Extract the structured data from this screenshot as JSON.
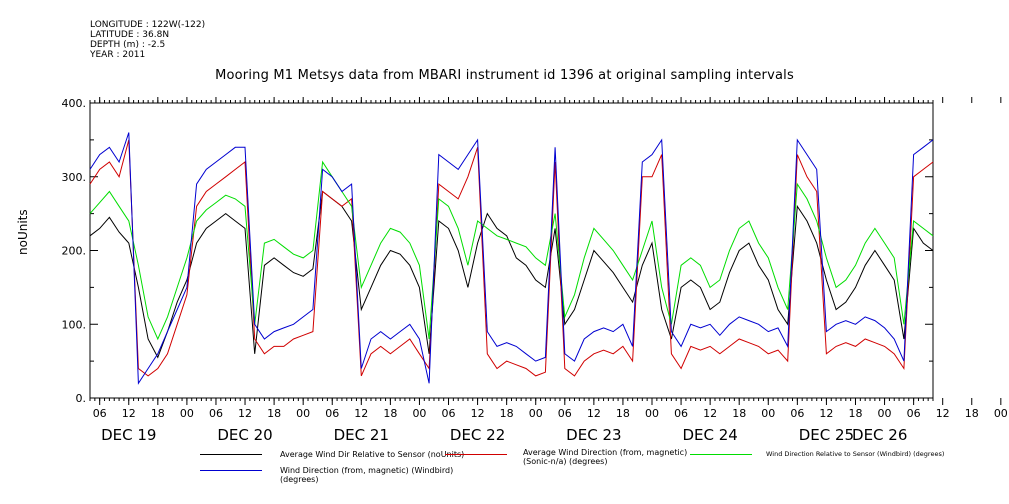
{
  "header": {
    "longitude": "LONGITUDE : 122W(-122)",
    "latitude": "LATITUDE : 36.8N",
    "depth": "DEPTH (m) : -2.5",
    "year": "YEAR : 2011"
  },
  "chart_data": {
    "type": "line",
    "title": "Mooring M1 Metsys data from MBARI instrument id 1396 at original sampling intervals",
    "ylabel": "noUnits",
    "xlabel": "",
    "ylim": [
      0,
      400
    ],
    "y_ticks": [
      0,
      100,
      200,
      300,
      400
    ],
    "y_tick_labels": [
      "0.",
      "100.",
      "200.",
      "300.",
      "400."
    ],
    "xlim_hours": [
      0,
      174
    ],
    "x_tick_labels": [
      "06",
      "12",
      "18",
      "00",
      "06",
      "12",
      "18",
      "00",
      "06",
      "12",
      "18",
      "00",
      "06",
      "12",
      "18",
      "00",
      "06",
      "12",
      "18",
      "00",
      "06",
      "12",
      "18",
      "00",
      "06",
      "12",
      "18",
      "00",
      "06",
      "12",
      "18",
      "00",
      "06",
      "12",
      "18",
      "00"
    ],
    "date_labels": [
      "DEC 19",
      "DEC 20",
      "DEC 21",
      "DEC 22",
      "DEC 23",
      "DEC 24",
      "DEC 25",
      "DEC 26"
    ],
    "grid": false,
    "legend_position": "bottom",
    "series": [
      {
        "name": "Average Wind Dir Relative to Sensor (noUnits)",
        "color": "#000000",
        "x": [
          0,
          2,
          4,
          6,
          8,
          10,
          12,
          14,
          16,
          18,
          20,
          22,
          24,
          26,
          28,
          30,
          32,
          34,
          36,
          38,
          40,
          42,
          44,
          46,
          48,
          50,
          52,
          54,
          56,
          58,
          60,
          62,
          64,
          66,
          68,
          70,
          72,
          74,
          76,
          78,
          80,
          82,
          84,
          86,
          88,
          90,
          92,
          94,
          96,
          98,
          100,
          102,
          104,
          106,
          108,
          110,
          112,
          114,
          116,
          118,
          120,
          122,
          124,
          126,
          128,
          130,
          132,
          134,
          136,
          138,
          140,
          142,
          144,
          146,
          148,
          150,
          152,
          154,
          156,
          158,
          160,
          162,
          164,
          166,
          168,
          170,
          172,
          174
        ],
        "values": [
          220,
          230,
          245,
          225,
          210,
          150,
          80,
          55,
          90,
          130,
          160,
          210,
          230,
          240,
          250,
          240,
          230,
          60,
          180,
          190,
          180,
          170,
          165,
          175,
          280,
          270,
          260,
          240,
          120,
          150,
          180,
          200,
          195,
          180,
          150,
          60,
          240,
          230,
          200,
          150,
          210,
          250,
          230,
          220,
          190,
          180,
          160,
          150,
          230,
          100,
          120,
          160,
          200,
          185,
          170,
          150,
          130,
          180,
          210,
          120,
          80,
          150,
          160,
          150,
          120,
          130,
          170,
          200,
          210,
          180,
          160,
          120,
          100,
          260,
          240,
          210,
          160,
          120,
          130,
          150,
          180,
          200,
          180,
          160,
          80,
          230,
          210,
          200
        ]
      },
      {
        "name": "Average Wind Direction (from, magnetic) (Sonic-n/a) (degrees)",
        "color": "#d00000",
        "x": [
          0,
          2,
          4,
          6,
          8,
          10,
          12,
          14,
          16,
          18,
          20,
          22,
          24,
          26,
          28,
          30,
          32,
          34,
          36,
          38,
          40,
          42,
          44,
          46,
          48,
          50,
          52,
          54,
          56,
          58,
          60,
          62,
          64,
          66,
          68,
          70,
          72,
          74,
          76,
          78,
          80,
          82,
          84,
          86,
          88,
          90,
          92,
          94,
          96,
          98,
          100,
          102,
          104,
          106,
          108,
          110,
          112,
          114,
          116,
          118,
          120,
          122,
          124,
          126,
          128,
          130,
          132,
          134,
          136,
          138,
          140,
          142,
          144,
          146,
          148,
          150,
          152,
          154,
          156,
          158,
          160,
          162,
          164,
          166,
          168,
          170,
          172,
          174
        ],
        "values": [
          290,
          310,
          320,
          300,
          350,
          40,
          30,
          40,
          60,
          100,
          140,
          260,
          280,
          290,
          300,
          310,
          320,
          80,
          60,
          70,
          70,
          80,
          85,
          90,
          280,
          270,
          260,
          270,
          30,
          60,
          70,
          60,
          70,
          80,
          60,
          40,
          290,
          280,
          270,
          300,
          340,
          60,
          40,
          50,
          45,
          40,
          30,
          35,
          320,
          40,
          30,
          50,
          60,
          65,
          60,
          70,
          50,
          300,
          300,
          330,
          60,
          40,
          70,
          65,
          70,
          60,
          70,
          80,
          75,
          70,
          60,
          65,
          50,
          330,
          300,
          280,
          60,
          70,
          75,
          70,
          80,
          75,
          70,
          60,
          40,
          300,
          310,
          320
        ]
      },
      {
        "name": "Wind Direction Relative to Sensor (Windbird) (degrees)",
        "color": "#00dd00",
        "x": [
          0,
          2,
          4,
          6,
          8,
          10,
          12,
          14,
          16,
          18,
          20,
          22,
          24,
          26,
          28,
          30,
          32,
          34,
          36,
          38,
          40,
          42,
          44,
          46,
          48,
          50,
          52,
          54,
          56,
          58,
          60,
          62,
          64,
          66,
          68,
          70,
          72,
          74,
          76,
          78,
          80,
          82,
          84,
          86,
          88,
          90,
          92,
          94,
          96,
          98,
          100,
          102,
          104,
          106,
          108,
          110,
          112,
          114,
          116,
          118,
          120,
          122,
          124,
          126,
          128,
          130,
          132,
          134,
          136,
          138,
          140,
          142,
          144,
          146,
          148,
          150,
          152,
          154,
          156,
          158,
          160,
          162,
          164,
          166,
          168,
          170,
          172,
          174
        ],
        "values": [
          250,
          265,
          280,
          260,
          240,
          180,
          110,
          80,
          110,
          150,
          190,
          240,
          255,
          265,
          275,
          270,
          260,
          100,
          210,
          215,
          205,
          195,
          190,
          200,
          320,
          300,
          280,
          260,
          150,
          180,
          210,
          230,
          225,
          210,
          180,
          80,
          270,
          260,
          230,
          180,
          240,
          230,
          220,
          215,
          210,
          205,
          190,
          180,
          250,
          110,
          140,
          190,
          230,
          215,
          200,
          180,
          160,
          200,
          240,
          150,
          100,
          180,
          190,
          180,
          150,
          160,
          200,
          230,
          240,
          210,
          190,
          150,
          120,
          290,
          270,
          240,
          190,
          150,
          160,
          180,
          210,
          230,
          210,
          190,
          100,
          240,
          230,
          220
        ]
      },
      {
        "name": "Wind Direction (from, magnetic) (Windbird) (degrees)",
        "color": "#0000d0",
        "x": [
          0,
          2,
          4,
          6,
          8,
          10,
          12,
          14,
          16,
          18,
          20,
          22,
          24,
          26,
          28,
          30,
          32,
          34,
          36,
          38,
          40,
          42,
          44,
          46,
          48,
          50,
          52,
          54,
          56,
          58,
          60,
          62,
          64,
          66,
          68,
          70,
          72,
          74,
          76,
          78,
          80,
          82,
          84,
          86,
          88,
          90,
          92,
          94,
          96,
          98,
          100,
          102,
          104,
          106,
          108,
          110,
          112,
          114,
          116,
          118,
          120,
          122,
          124,
          126,
          128,
          130,
          132,
          134,
          136,
          138,
          140,
          142,
          144,
          146,
          148,
          150,
          152,
          154,
          156,
          158,
          160,
          162,
          164,
          166,
          168,
          170,
          172,
          174
        ],
        "values": [
          310,
          330,
          340,
          320,
          360,
          20,
          40,
          60,
          90,
          120,
          150,
          290,
          310,
          320,
          330,
          340,
          340,
          100,
          80,
          90,
          95,
          100,
          110,
          120,
          310,
          300,
          280,
          290,
          40,
          80,
          90,
          80,
          90,
          100,
          80,
          20,
          330,
          320,
          310,
          330,
          350,
          90,
          70,
          75,
          70,
          60,
          50,
          55,
          340,
          60,
          50,
          80,
          90,
          95,
          90,
          100,
          70,
          320,
          330,
          350,
          90,
          70,
          100,
          95,
          100,
          85,
          100,
          110,
          105,
          100,
          90,
          95,
          70,
          350,
          330,
          310,
          90,
          100,
          105,
          100,
          110,
          105,
          95,
          80,
          50,
          330,
          340,
          350
        ]
      }
    ]
  }
}
